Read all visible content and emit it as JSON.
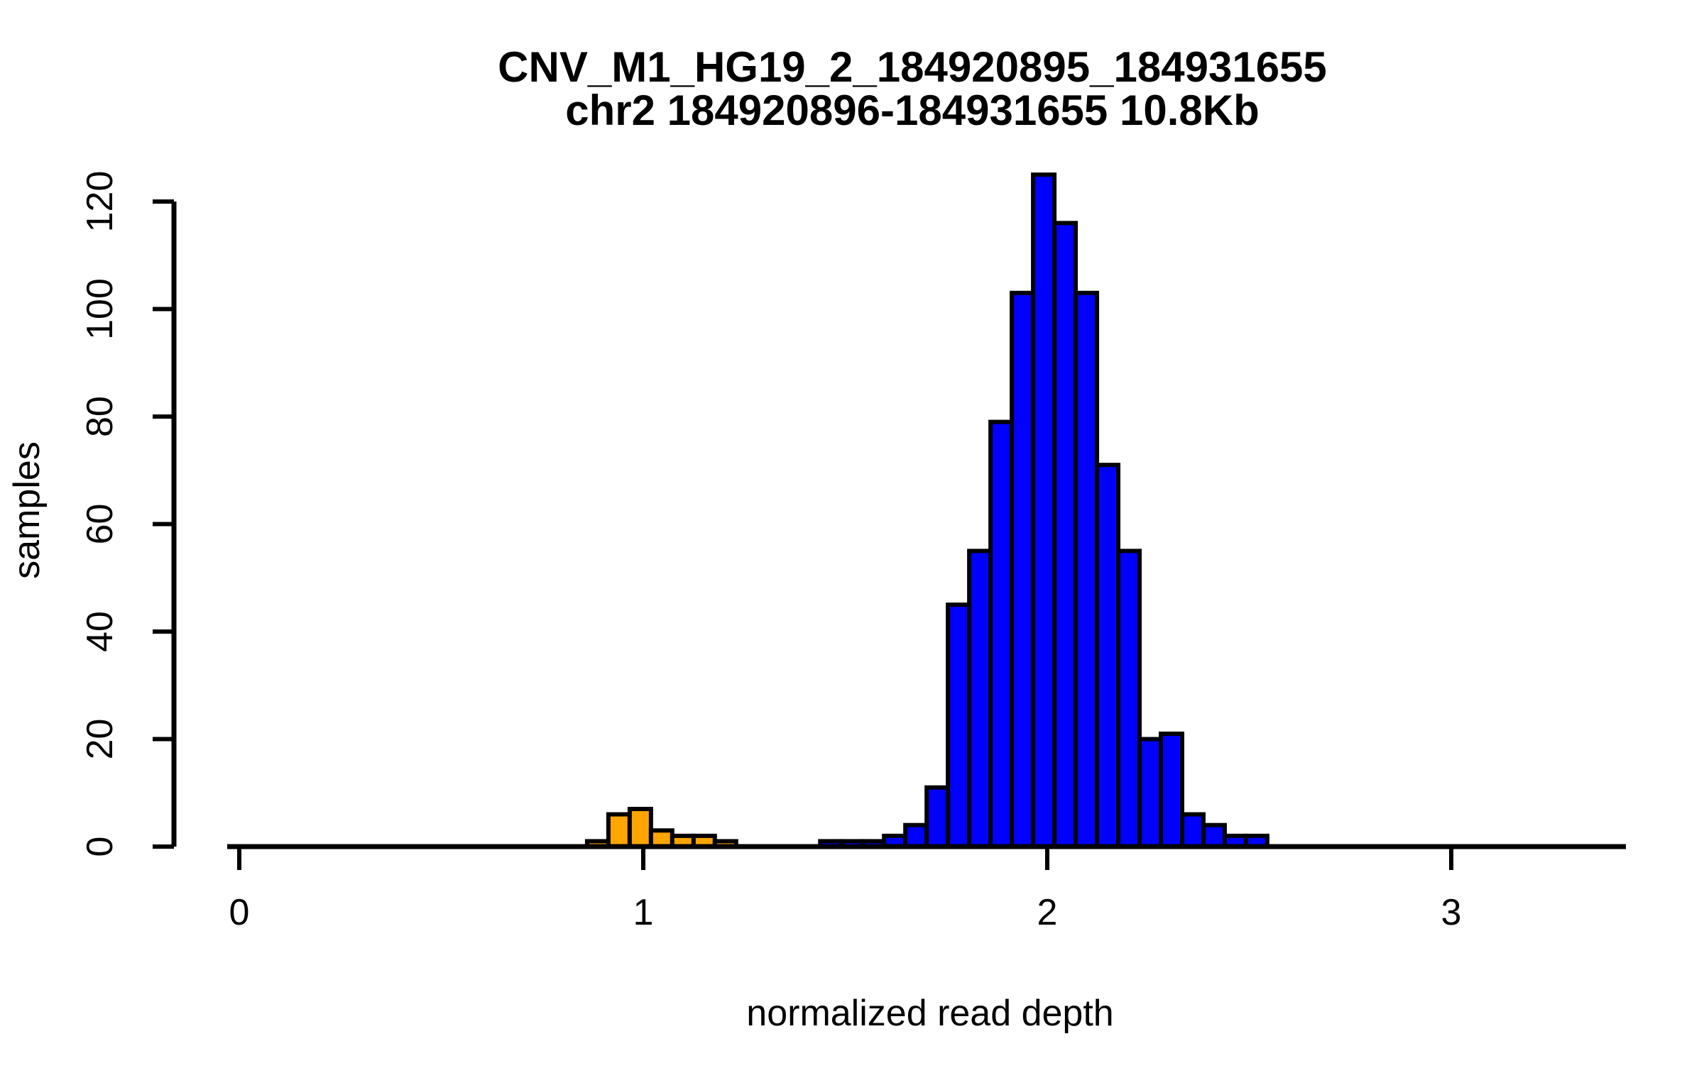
{
  "figure": {
    "title_line1": "CNV_M1_HG19_2_184920895_184931655",
    "title_line2": "chr2 184920896-184931655 10.8Kb",
    "xlabel": "normalized read depth",
    "ylabel": "samples"
  },
  "chart_data": {
    "type": "bar",
    "variant": "histogram",
    "title_lines": [
      "CNV_M1_HG19_2_184920895_184931655",
      "chr2 184920896-184931655 10.8Kb"
    ],
    "xlabel": "normalized read depth",
    "ylabel": "samples",
    "x_ticks": [
      0,
      1,
      2,
      3
    ],
    "y_ticks": [
      0,
      20,
      40,
      60,
      80,
      100,
      120
    ],
    "xlim": [
      -0.03,
      3.43
    ],
    "ylim": [
      0,
      125
    ],
    "grid": false,
    "legend": false,
    "bin_width": 0.0527,
    "bar_border_color": "#000000",
    "series": [
      {
        "color_name": "orange",
        "color": "#FFA500",
        "first_bin_left_edge": 0.861,
        "counts": [
          1,
          6,
          7,
          3,
          2,
          2,
          1
        ]
      },
      {
        "color_name": "blue",
        "color": "#0000FF",
        "first_bin_left_edge": 1.438,
        "counts": [
          1,
          1,
          1,
          2,
          4,
          11,
          45,
          55,
          79,
          103,
          125,
          116,
          103,
          71,
          55,
          20,
          21,
          6,
          4,
          2,
          2
        ]
      }
    ]
  }
}
